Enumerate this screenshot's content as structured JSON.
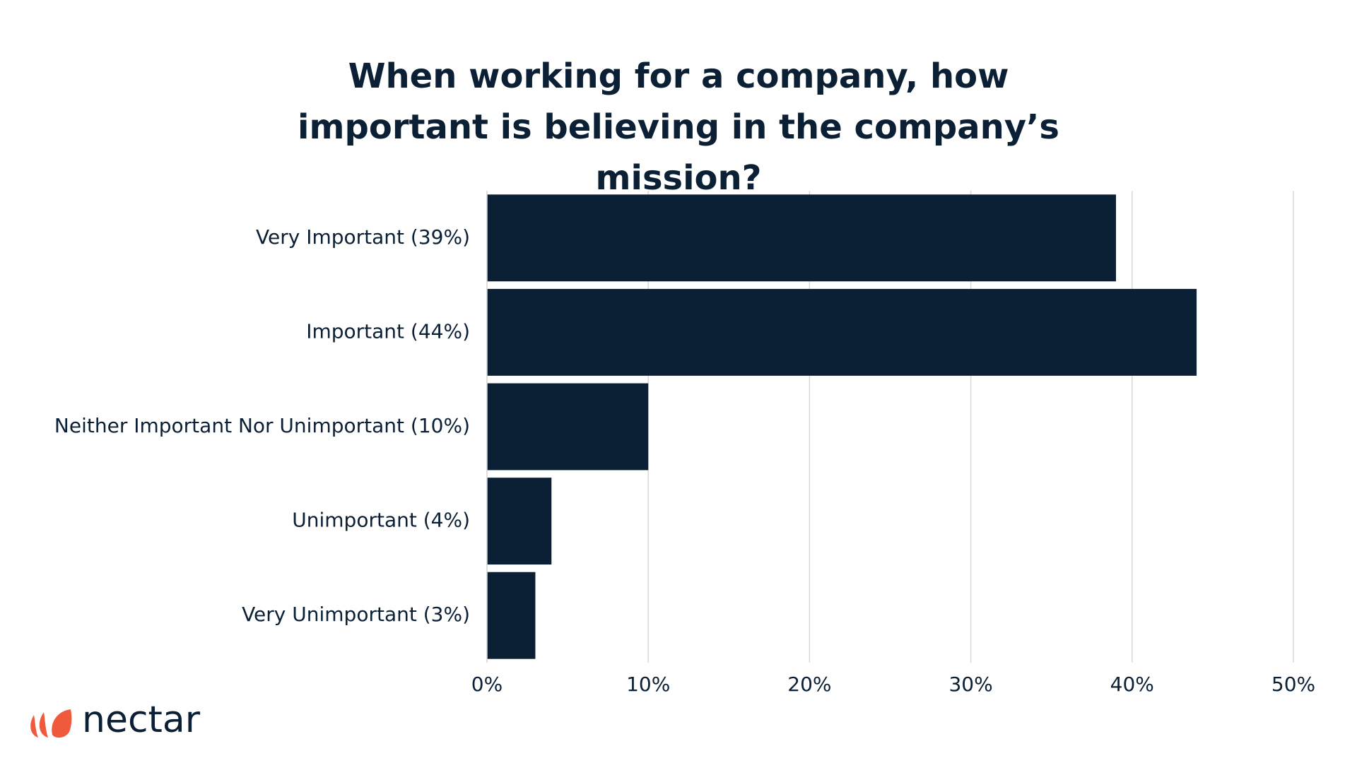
{
  "chart_data": {
    "type": "bar",
    "orientation": "horizontal",
    "title": "When working for a company, how important is believing in the company’s mission?",
    "categories": [
      "Very Important (39%)",
      "Important (44%)",
      "Neither Important Nor Unimportant (10%)",
      "Unimportant (4%)",
      "Very Unimportant (3%)"
    ],
    "values": [
      39,
      44,
      10,
      4,
      3
    ],
    "color": "#0b1f35",
    "xlim": [
      0,
      50
    ],
    "xticks": [
      {
        "value": 0,
        "label": "0%"
      },
      {
        "value": 10,
        "label": "10%"
      },
      {
        "value": 20,
        "label": "20%"
      },
      {
        "value": 30,
        "label": "30%"
      },
      {
        "value": 40,
        "label": "40%"
      },
      {
        "value": 50,
        "label": "50%"
      }
    ],
    "grid": true
  },
  "logo": "nectar"
}
